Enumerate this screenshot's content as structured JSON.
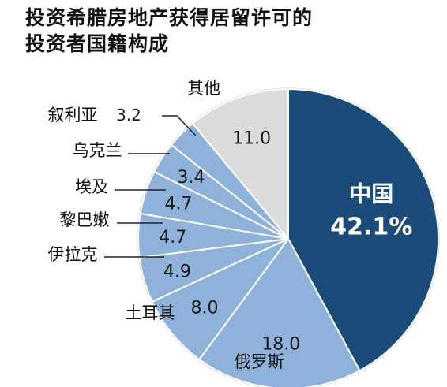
{
  "chart_data": {
    "type": "pie",
    "title_lines": [
      "投资希腊房地产获得居留许可的",
      "投资者国籍构成"
    ],
    "slices": [
      {
        "label": "中国",
        "value": 42.1,
        "value_text": "42.1%",
        "color": "#1b4b78"
      },
      {
        "label": "俄罗斯",
        "value": 18.0,
        "value_text": "18.0",
        "color": "#8fb2db"
      },
      {
        "label": "土耳其",
        "value": 8.0,
        "value_text": "8.0",
        "color": "#8fb2db"
      },
      {
        "label": "伊拉克",
        "value": 4.9,
        "value_text": "4.9",
        "color": "#8fb2db"
      },
      {
        "label": "黎巴嫩",
        "value": 4.7,
        "value_text": "4.7",
        "color": "#8fb2db"
      },
      {
        "label": "埃及",
        "value": 4.7,
        "value_text": "4.7",
        "color": "#8fb2db"
      },
      {
        "label": "乌克兰",
        "value": 3.4,
        "value_text": "3.4",
        "color": "#8fb2db"
      },
      {
        "label": "叙利亚",
        "value": 3.2,
        "value_text": "3.2",
        "color": "#8fb2db"
      },
      {
        "label": "其他",
        "value": 11.0,
        "value_text": "11.0",
        "color": "#dcdcdc"
      }
    ]
  }
}
